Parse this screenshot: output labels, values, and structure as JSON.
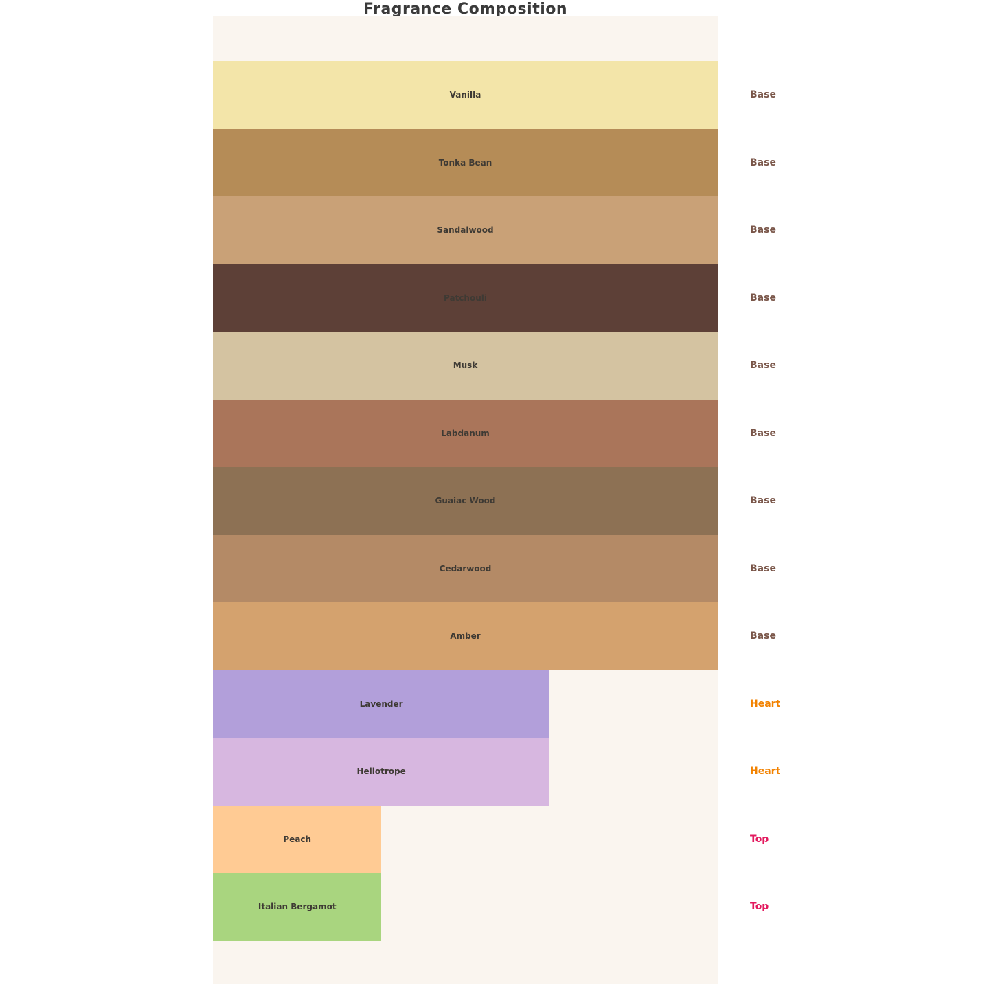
{
  "title": "Fragrance Composition",
  "chart_data": {
    "type": "bar",
    "orientation": "horizontal",
    "title": "Fragrance Composition",
    "xlabel": "",
    "ylabel": "",
    "axes_visible": false,
    "grid": false,
    "panel_background": "#faf5ef",
    "page_background": "#ffffff",
    "category_label_position": "right",
    "bar_value_range_pct": [
      0,
      100
    ],
    "bars": [
      {
        "name": "Vanilla",
        "category": "Base",
        "width_pct": 100,
        "color": "#f3e5a9"
      },
      {
        "name": "Tonka Bean",
        "category": "Base",
        "width_pct": 100,
        "color": "#b58c57"
      },
      {
        "name": "Sandalwood",
        "category": "Base",
        "width_pct": 100,
        "color": "#c9a177"
      },
      {
        "name": "Patchouli",
        "category": "Base",
        "width_pct": 100,
        "color": "#5d4037"
      },
      {
        "name": "Musk",
        "category": "Base",
        "width_pct": 100,
        "color": "#d4c3a1"
      },
      {
        "name": "Labdanum",
        "category": "Base",
        "width_pct": 100,
        "color": "#aa755a"
      },
      {
        "name": "Guaiac Wood",
        "category": "Base",
        "width_pct": 100,
        "color": "#8d7154"
      },
      {
        "name": "Cedarwood",
        "category": "Base",
        "width_pct": 100,
        "color": "#b48a66"
      },
      {
        "name": "Amber",
        "category": "Base",
        "width_pct": 100,
        "color": "#d4a26e"
      },
      {
        "name": "Lavender",
        "category": "Heart",
        "width_pct": 66.7,
        "color": "#b29fda"
      },
      {
        "name": "Heliotrope",
        "category": "Heart",
        "width_pct": 66.7,
        "color": "#d7b7e0"
      },
      {
        "name": "Peach",
        "category": "Top",
        "width_pct": 33.4,
        "color": "#ffcb94"
      },
      {
        "name": "Italian Bergamot",
        "category": "Top",
        "width_pct": 33.4,
        "color": "#a9d57f"
      }
    ],
    "category_colors": {
      "Base": "#795548",
      "Heart": "#f28200",
      "Top": "#e3195e"
    }
  }
}
